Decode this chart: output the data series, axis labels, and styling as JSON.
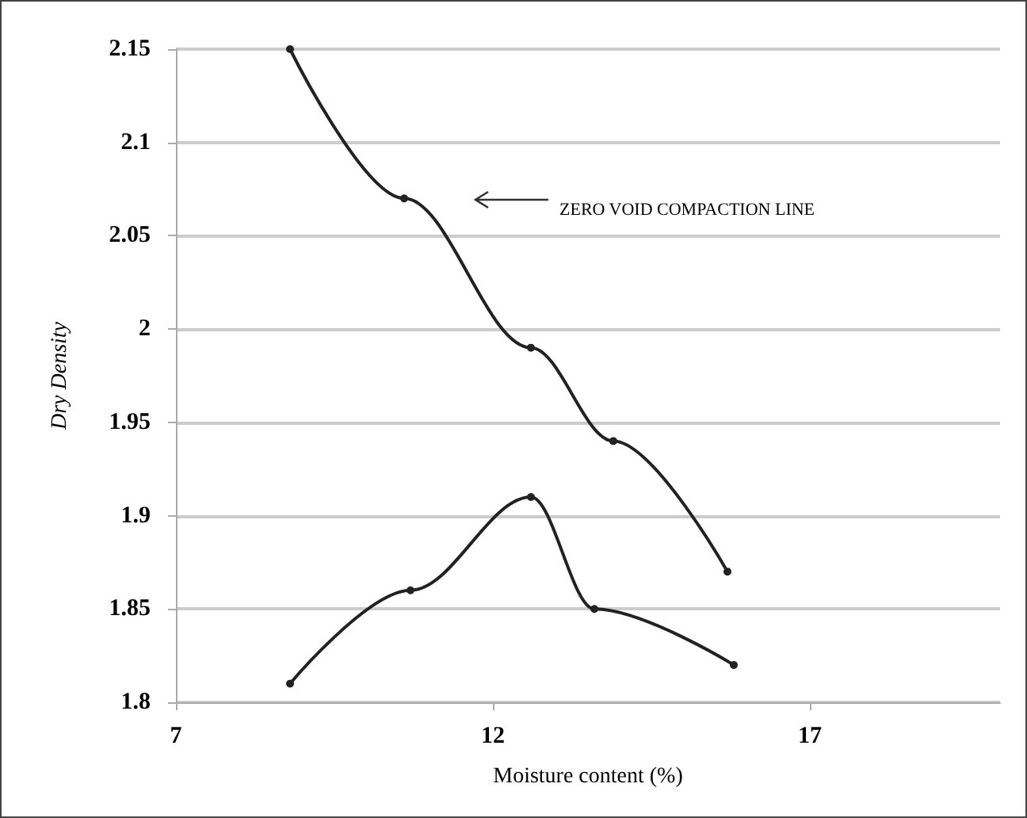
{
  "chart_data": {
    "type": "line",
    "xlabel": "Moisture content (%)",
    "ylabel": "Dry Density",
    "xlim": [
      7,
      20
    ],
    "xticks": [
      7,
      12,
      17
    ],
    "ylim": [
      1.8,
      2.15
    ],
    "yticks": [
      1.8,
      1.85,
      1.9,
      1.95,
      2,
      2.05,
      2.1,
      2.15
    ],
    "grid": "y",
    "marker": "circle",
    "line_style": "solid",
    "annotations": [
      "ZERO VOID COMPACTION LINE"
    ],
    "series": [
      {
        "color": "#222222",
        "x": [
          8.8,
          10.6,
          12.6,
          13.9,
          15.7
        ],
        "values": [
          2.15,
          2.07,
          1.99,
          1.94,
          1.87
        ]
      },
      {
        "color": "#222222",
        "x": [
          8.8,
          10.7,
          12.6,
          13.6,
          15.8
        ],
        "values": [
          1.81,
          1.86,
          1.91,
          1.85,
          1.82
        ]
      }
    ]
  }
}
